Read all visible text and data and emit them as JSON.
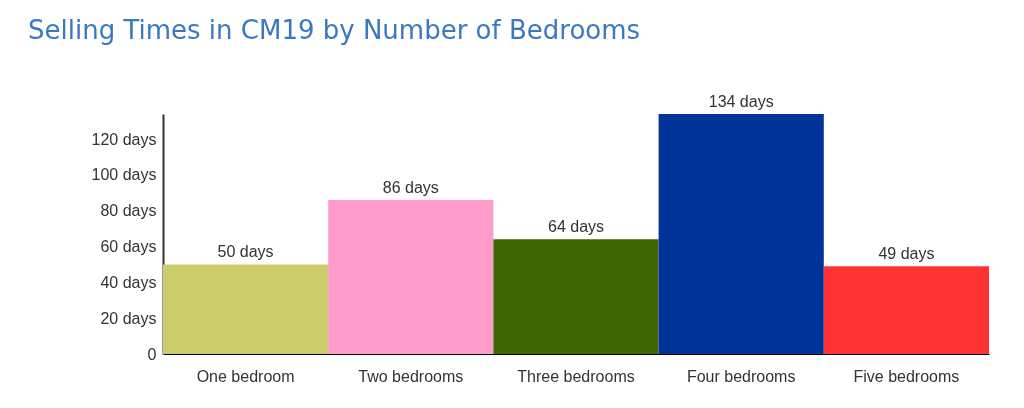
{
  "chart_data": {
    "type": "bar",
    "title": "Selling Times in CM19 by Number of Bedrooms",
    "categories": [
      "One bedroom",
      "Two bedrooms",
      "Three bedrooms",
      "Four bedrooms",
      "Five bedrooms"
    ],
    "values": [
      50,
      86,
      64,
      134,
      49
    ],
    "value_labels": [
      "50 days",
      "86 days",
      "64 days",
      "134 days",
      "49 days"
    ],
    "colors": [
      "#cccc6b",
      "#ff9ccc",
      "#3f6600",
      "#003399",
      "#ff3333"
    ],
    "ylim": [
      0,
      134
    ],
    "yticks": [
      0,
      {
        "value": 20,
        "label": "20 days"
      },
      {
        "value": 40,
        "label": "40 days"
      },
      {
        "value": 60,
        "label": "60 days"
      },
      {
        "value": 80,
        "label": "80 days"
      },
      {
        "value": 100,
        "label": "100 days"
      },
      {
        "value": 120,
        "label": "120 days"
      }
    ],
    "grid": false
  }
}
